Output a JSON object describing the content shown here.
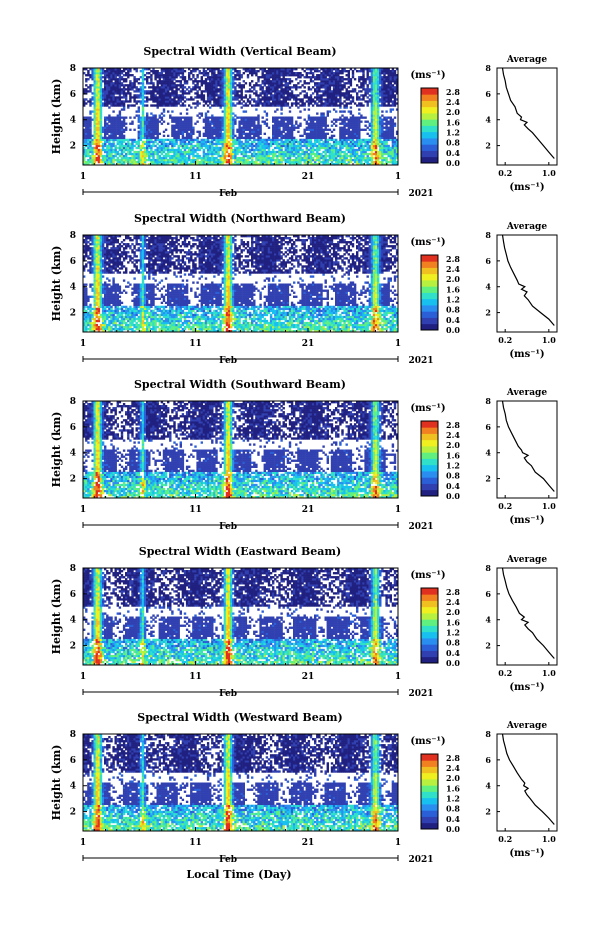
{
  "chart_data": {
    "type": "heatmap",
    "shared": {
      "xlabel": "Local Time (Day)",
      "ylabel": "Height (km)",
      "x_ticks": [
        "1",
        "11",
        "21",
        "1"
      ],
      "month_label": "Feb",
      "year_label": "2021",
      "xlim_days": [
        1,
        29
      ],
      "ylim_km": [
        0.5,
        8
      ],
      "y_ticks": [
        2,
        4,
        6,
        8
      ],
      "colorbar_unit": "(ms⁻¹)",
      "profile_title": "Average",
      "profile_xlabel": "(ms⁻¹)",
      "profile_x_ticks": [
        0.2,
        1.0
      ],
      "profile_xlim": [
        0.05,
        1.15
      ],
      "colorbar_ticks": [
        0.0,
        0.4,
        0.8,
        1.2,
        1.6,
        2.0,
        2.4,
        2.8
      ],
      "colorbar_tick_labels": [
        "0.0",
        "0.4",
        "0.8",
        "1.2",
        "1.6",
        "2.0",
        "2.4",
        "2.8"
      ],
      "colormap": [
        "#202080",
        "#3040b0",
        "#2a5fd8",
        "#2a8ef0",
        "#18c0f0",
        "#30e0c8",
        "#60f080",
        "#b8f040",
        "#f0f020",
        "#f0c020",
        "#f08020",
        "#e03020"
      ]
    },
    "panels": [
      {
        "title": "Spectral Width (Vertical Beam)",
        "profile_label_precision": "0.2 / 1.0",
        "profile": {
          "height_km": [
            1.0,
            1.5,
            2.0,
            2.5,
            3.0,
            3.3,
            3.6,
            3.8,
            4.0,
            4.2,
            4.5,
            5.0,
            5.5,
            6.0,
            6.5,
            7.0,
            7.5,
            8.0
          ],
          "width": [
            1.1,
            1.0,
            0.9,
            0.8,
            0.7,
            0.62,
            0.55,
            0.6,
            0.48,
            0.5,
            0.42,
            0.38,
            0.3,
            0.26,
            0.22,
            0.2,
            0.17,
            0.15
          ]
        }
      },
      {
        "title": "Spectral Width (Northward Beam)",
        "profile": {
          "height_km": [
            1.0,
            1.5,
            2.0,
            2.5,
            3.0,
            3.3,
            3.6,
            3.8,
            4.0,
            4.2,
            4.5,
            5.0,
            5.5,
            6.0,
            6.5,
            7.0,
            7.5,
            8.0
          ],
          "width": [
            1.1,
            1.0,
            0.85,
            0.7,
            0.62,
            0.55,
            0.6,
            0.5,
            0.56,
            0.45,
            0.42,
            0.36,
            0.3,
            0.25,
            0.22,
            0.19,
            0.17,
            0.15
          ]
        }
      },
      {
        "title": "Spectral Width (Southward Beam)",
        "profile": {
          "height_km": [
            1.0,
            1.5,
            2.0,
            2.5,
            3.0,
            3.3,
            3.6,
            3.8,
            4.0,
            4.2,
            4.5,
            5.0,
            5.5,
            6.0,
            6.5,
            7.0,
            7.5,
            8.0
          ],
          "width": [
            1.1,
            1.0,
            0.9,
            0.75,
            0.68,
            0.6,
            0.55,
            0.62,
            0.52,
            0.5,
            0.44,
            0.38,
            0.32,
            0.26,
            0.22,
            0.2,
            0.17,
            0.15
          ]
        }
      },
      {
        "title": "Spectral Width (Eastward Beam)",
        "profile": {
          "height_km": [
            1.0,
            1.5,
            2.0,
            2.5,
            3.0,
            3.3,
            3.6,
            3.8,
            4.0,
            4.2,
            4.5,
            5.0,
            5.5,
            6.0,
            6.5,
            7.0,
            7.5,
            8.0
          ],
          "width": [
            1.1,
            1.0,
            0.9,
            0.78,
            0.7,
            0.62,
            0.56,
            0.62,
            0.5,
            0.55,
            0.46,
            0.4,
            0.33,
            0.27,
            0.23,
            0.2,
            0.17,
            0.15
          ]
        }
      },
      {
        "title": "Spectral Width (Westward Beam)",
        "profile": {
          "height_km": [
            1.0,
            1.5,
            2.0,
            2.5,
            3.0,
            3.3,
            3.6,
            3.8,
            4.0,
            4.2,
            4.5,
            5.0,
            5.5,
            6.0,
            6.5,
            7.0,
            7.5,
            8.0
          ],
          "width": [
            1.1,
            1.0,
            0.88,
            0.75,
            0.66,
            0.6,
            0.56,
            0.62,
            0.54,
            0.56,
            0.5,
            0.42,
            0.35,
            0.28,
            0.23,
            0.2,
            0.17,
            0.15
          ]
        }
      }
    ]
  }
}
